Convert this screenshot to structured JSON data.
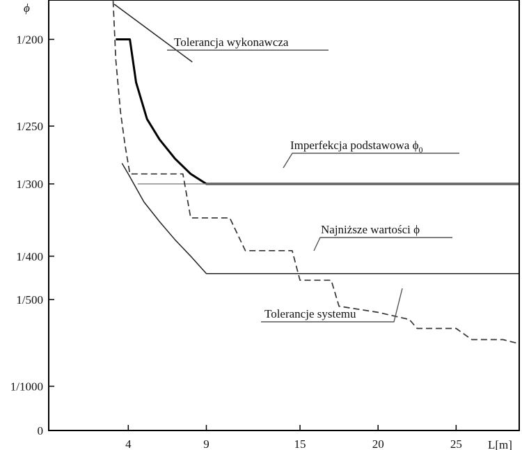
{
  "chart_data": {
    "type": "line",
    "title": "",
    "ylabel": "ϕ",
    "xlabel": "L[m]",
    "x_ticks": [
      4,
      9,
      15,
      20,
      25
    ],
    "y_ticks": [
      {
        "label": "1/200",
        "inv": 200
      },
      {
        "label": "1/250",
        "inv": 250
      },
      {
        "label": "1/300",
        "inv": 300
      },
      {
        "label": "1/400",
        "inv": 400
      },
      {
        "label": "1/500",
        "inv": 500
      },
      {
        "label": "1/1000",
        "inv": 1000
      },
      {
        "label": "0",
        "inv": null
      }
    ],
    "xlim": [
      0,
      29
    ],
    "grid": false,
    "series": [
      {
        "name": "Tolerancja wykonawcza",
        "style": "solid-thick",
        "points": [
          [
            3.2,
            200
          ],
          [
            4.1,
            200
          ],
          [
            4.5,
            222
          ],
          [
            5.2,
            245
          ],
          [
            6,
            260
          ],
          [
            7,
            276
          ],
          [
            8,
            290
          ],
          [
            9,
            300
          ],
          [
            29,
            300
          ]
        ]
      },
      {
        "name": "Tolerancja wykonawcza",
        "style": "solid-thin",
        "points": [
          [
            3.1,
            185
          ],
          [
            8.1,
            211
          ]
        ]
      },
      {
        "name": "Imperfekcja podstawowa ϕ0",
        "style": "solid-thin",
        "points": [
          [
            4.6,
            300
          ],
          [
            29,
            300
          ]
        ]
      },
      {
        "name": "Najniższe wartości ϕ",
        "style": "solid-thin",
        "points": [
          [
            3.6,
            280
          ],
          [
            4,
            290
          ],
          [
            5,
            320
          ],
          [
            6,
            345
          ],
          [
            7,
            372
          ],
          [
            8,
            400
          ],
          [
            9,
            435
          ],
          [
            29,
            435
          ]
        ]
      },
      {
        "name": "Tolerancje systemu",
        "style": "dashed",
        "points": [
          [
            3.0,
            180
          ],
          [
            3.2,
            210
          ],
          [
            3.5,
            240
          ],
          [
            3.8,
            265
          ],
          [
            4.1,
            290
          ],
          [
            7.5,
            290
          ],
          [
            8.0,
            340
          ],
          [
            10.5,
            340
          ],
          [
            11.5,
            390
          ],
          [
            14.5,
            390
          ],
          [
            15.0,
            450
          ],
          [
            17.0,
            450
          ],
          [
            17.5,
            520
          ],
          [
            20.0,
            540
          ],
          [
            22.0,
            565
          ],
          [
            22.5,
            600
          ],
          [
            25.0,
            600
          ],
          [
            26.0,
            650
          ],
          [
            28.0,
            650
          ],
          [
            29.0,
            670
          ]
        ]
      }
    ],
    "annotations": [
      {
        "text": "Tolerancja wykonawcza"
      },
      {
        "text": "Imperfekcja podstawowa ϕ",
        "sub": "0"
      },
      {
        "text": "Najniższe wartości ϕ"
      },
      {
        "text": "Tolerancje systemu"
      }
    ]
  }
}
